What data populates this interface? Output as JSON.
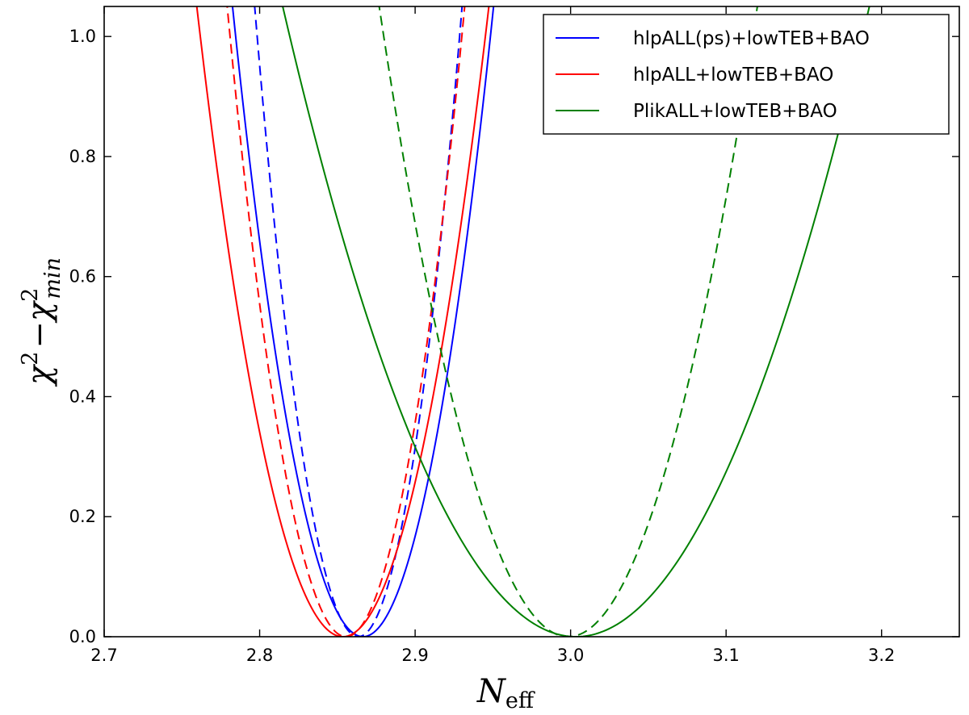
{
  "chart_data": {
    "type": "line",
    "xlabel": {
      "main": "N",
      "sub": "eff"
    },
    "ylabel": {
      "chi": "χ",
      "sup": "2",
      "minus": "−",
      "sub": "min"
    },
    "xlim": [
      2.7,
      3.25
    ],
    "ylim": [
      0.0,
      1.05
    ],
    "xticks": [
      {
        "value": 2.7,
        "label": "2.7"
      },
      {
        "value": 2.8,
        "label": "2.8"
      },
      {
        "value": 2.9,
        "label": "2.9"
      },
      {
        "value": 3.0,
        "label": "3.0"
      },
      {
        "value": 3.1,
        "label": "3.1"
      },
      {
        "value": 3.2,
        "label": "3.2"
      }
    ],
    "yticks": [
      {
        "value": 0.0,
        "label": "0.0"
      },
      {
        "value": 0.2,
        "label": "0.2"
      },
      {
        "value": 0.4,
        "label": "0.4"
      },
      {
        "value": 0.6,
        "label": "0.6"
      },
      {
        "value": 0.8,
        "label": "0.8"
      },
      {
        "value": 1.0,
        "label": "1.0"
      }
    ],
    "grid": false,
    "legend_position": "top-right",
    "legend": [
      {
        "label": "hlpALL(ps)+lowTEB+BAO",
        "color": "#0000ff"
      },
      {
        "label": "hlpALL+lowTEB+BAO",
        "color": "#ff0000"
      },
      {
        "label": "PlikALL+lowTEB+BAO",
        "color": "#008000"
      }
    ],
    "series": [
      {
        "color": "#0000ff",
        "style": "solid",
        "min_x": 2.8665,
        "curvature": 149.0
      },
      {
        "color": "#0000ff",
        "style": "dashed",
        "min_x": 2.8635,
        "curvature": 236.0
      },
      {
        "color": "#ff0000",
        "style": "solid",
        "min_x": 2.8535,
        "curvature": 119.0
      },
      {
        "color": "#ff0000",
        "style": "dashed",
        "min_x": 2.8555,
        "curvature": 180.0
      },
      {
        "color": "#008000",
        "style": "solid",
        "min_x": 3.0035,
        "curvature": 29.5
      },
      {
        "color": "#008000",
        "style": "dashed",
        "min_x": 2.9985,
        "curvature": 71.0
      }
    ]
  }
}
